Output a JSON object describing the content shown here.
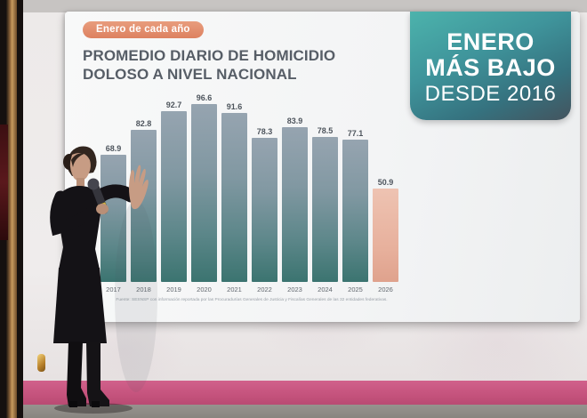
{
  "slide": {
    "badge_label": "Enero de cada año",
    "title_line1": "PROMEDIO DIARIO DE HOMICIDIO",
    "title_line2": "DOLOSO A NIVEL NACIONAL",
    "source_note": "Fuente: SESNSP con información reportada por las Procuradurías Generales de Justicia y Fiscalías Generales de las 32 entidades federativas.",
    "banner": {
      "line1": "ENERO",
      "line2": "MÁS BAJO",
      "line3": "DESDE 2016"
    }
  },
  "chart_data": {
    "type": "bar",
    "title": "PROMEDIO DIARIO DE HOMICIDIO DOLOSO A NIVEL NACIONAL",
    "subtitle_badge": "Enero de cada año",
    "categories": [
      "2017",
      "2018",
      "2019",
      "2020",
      "2021",
      "2022",
      "2023",
      "2024",
      "2025",
      "2026"
    ],
    "values": [
      68.9,
      82.8,
      92.7,
      96.6,
      91.6,
      78.3,
      83.9,
      78.5,
      77.1,
      50.9
    ],
    "ylim": [
      0,
      100
    ],
    "value_labels_shown": true,
    "grid": false,
    "highlight_category": "2026",
    "annotation": "ENERO MÁS BAJO DESDE 2016",
    "xlabel": "",
    "ylabel": ""
  },
  "colors": {
    "badge_bg": "#e18a69",
    "title_text": "#575e67",
    "bar_teal": "#4b7f7e",
    "bar_highlight": "#e7b09c",
    "banner_top": "#4cb3ac",
    "banner_bottom": "#44545e",
    "pink_band": "#c5537d",
    "floor": "#8d8a85",
    "slide_bg": "#f5f6f6"
  }
}
